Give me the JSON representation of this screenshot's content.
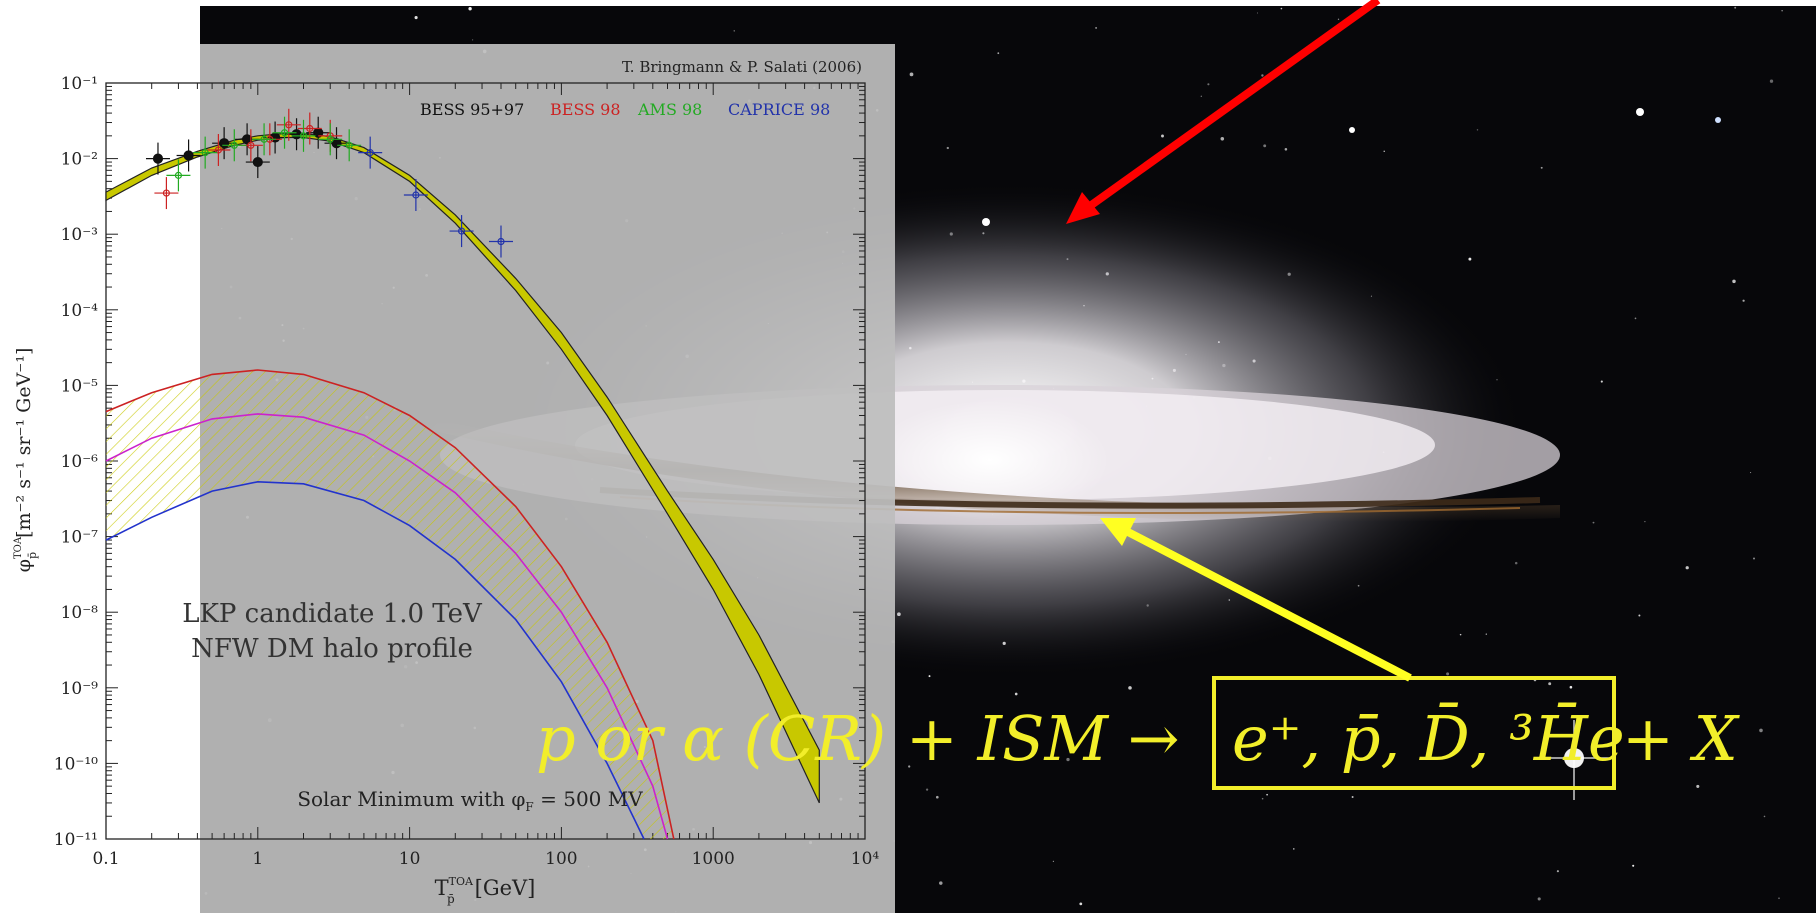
{
  "credit": "T. Bringmann & P. Salati (2006)",
  "legend": [
    {
      "label": "BESS 95+97",
      "color": "#111111"
    },
    {
      "label": "BESS 98",
      "color": "#cc2222"
    },
    {
      "label": "AMS 98",
      "color": "#22aa22"
    },
    {
      "label": "CAPRICE 98",
      "color": "#2233aa"
    }
  ],
  "annotation_lkp_line1": "LKP candidate 1.0 TeV",
  "annotation_lkp_line2": "NFW DM halo profile",
  "annotation_solar": "Solar Minimum with φ",
  "annotation_solar_sub": "F",
  "annotation_solar_value": " = 500 MV",
  "xlabel_main": "T",
  "xlabel_sup": "TOA",
  "xlabel_sub": "p̄",
  "xlabel_units": "[GeV]",
  "ylabel_main": "φ",
  "ylabel_sup": "TOA",
  "ylabel_sub": "p̄",
  "ylabel_units": "[m⁻² s⁻¹ sr⁻¹ GeV⁻¹]",
  "x_tick_labels": [
    "0.1",
    "1",
    "10",
    "100",
    "1000",
    "10⁴"
  ],
  "y_tick_labels": [
    "10⁻¹",
    "10⁻²",
    "10⁻³",
    "10⁻⁴",
    "10⁻⁵",
    "10⁻⁶",
    "10⁻⁷",
    "10⁻⁸",
    "10⁻⁹",
    "10⁻¹⁰",
    "10⁻¹¹"
  ],
  "reaction": {
    "left": "p or α (CR) + ISM →",
    "boxed": "e⁺, p̄, D̄, ³H̄e",
    "right": "+ X",
    "color": "#f2ee2a"
  },
  "arrows": {
    "red_color": "#ff0000",
    "yellow_color": "#ffff22"
  },
  "chart_data": {
    "type": "line",
    "xscale": "log",
    "yscale": "log",
    "xlim": [
      0.1,
      10000
    ],
    "ylim": [
      1e-11,
      0.1
    ],
    "grid": false,
    "legend_position": "top-right",
    "series": [
      {
        "name": "BESS 95+97",
        "color": "#111111",
        "points": [
          [
            0.22,
            0.01
          ],
          [
            0.35,
            0.011
          ],
          [
            0.6,
            0.016
          ],
          [
            0.85,
            0.018
          ],
          [
            1.0,
            0.009
          ],
          [
            1.3,
            0.019
          ],
          [
            1.8,
            0.021
          ],
          [
            2.5,
            0.022
          ],
          [
            3.3,
            0.016
          ]
        ]
      },
      {
        "name": "BESS 98",
        "color": "#cc2222",
        "points": [
          [
            0.25,
            0.0035
          ],
          [
            0.55,
            0.013
          ],
          [
            0.9,
            0.015
          ],
          [
            1.2,
            0.018
          ],
          [
            1.6,
            0.028
          ],
          [
            2.2,
            0.025
          ],
          [
            3.0,
            0.02
          ]
        ]
      },
      {
        "name": "AMS 98",
        "color": "#22aa22",
        "points": [
          [
            0.3,
            0.006
          ],
          [
            0.45,
            0.012
          ],
          [
            0.7,
            0.015
          ],
          [
            1.1,
            0.018
          ],
          [
            1.5,
            0.022
          ],
          [
            2.0,
            0.02
          ],
          [
            3.0,
            0.018
          ],
          [
            4.0,
            0.015
          ]
        ]
      },
      {
        "name": "CAPRICE 98",
        "color": "#2233aa",
        "points": [
          [
            5.5,
            0.012
          ],
          [
            11,
            0.0033
          ],
          [
            22,
            0.0011
          ],
          [
            40,
            0.0008
          ]
        ]
      }
    ],
    "background_band": {
      "color": "#c8c800",
      "x": [
        0.1,
        0.2,
        0.4,
        0.7,
        1.0,
        1.5,
        2.0,
        3.0,
        5.0,
        10,
        20,
        50,
        100,
        200,
        500,
        1000,
        2000,
        5000
      ],
      "lower": [
        0.0028,
        0.006,
        0.0105,
        0.015,
        0.0175,
        0.019,
        0.019,
        0.017,
        0.012,
        0.005,
        0.0014,
        0.00018,
        3e-05,
        4e-06,
        2e-07,
        2e-08,
        1.5e-09,
        3e-11
      ],
      "upper": [
        0.0036,
        0.0075,
        0.0125,
        0.0175,
        0.02,
        0.0215,
        0.0215,
        0.0195,
        0.014,
        0.006,
        0.0018,
        0.00026,
        5e-05,
        7e-06,
        4e-07,
        5e-08,
        5e-09,
        1.5e-10
      ]
    },
    "signal_curves": [
      {
        "color": "#cc2222",
        "x": [
          0.1,
          0.2,
          0.5,
          1.0,
          2.0,
          5.0,
          10,
          20,
          50,
          100,
          200,
          400,
          550
        ],
        "y": [
          4.5e-06,
          8e-06,
          1.4e-05,
          1.6e-05,
          1.4e-05,
          8e-06,
          4e-06,
          1.5e-06,
          2.5e-07,
          4e-08,
          4e-09,
          2e-10,
          1e-11
        ]
      },
      {
        "color": "#cc22cc",
        "x": [
          0.1,
          0.2,
          0.5,
          1.0,
          2.0,
          5.0,
          10,
          20,
          50,
          100,
          200,
          400,
          500
        ],
        "y": [
          1e-06,
          2e-06,
          3.6e-06,
          4.2e-06,
          3.8e-06,
          2.2e-06,
          1e-06,
          3.8e-07,
          6e-08,
          1e-08,
          1e-09,
          5e-11,
          1e-11
        ]
      },
      {
        "color": "#2233cc",
        "x": [
          0.1,
          0.2,
          0.5,
          1.0,
          2.0,
          5.0,
          10,
          20,
          50,
          100,
          200,
          350
        ],
        "y": [
          9e-08,
          1.8e-07,
          4e-07,
          5.3e-07,
          5e-07,
          3e-07,
          1.4e-07,
          5e-08,
          8e-09,
          1.2e-09,
          1e-10,
          1e-11
        ]
      }
    ]
  }
}
